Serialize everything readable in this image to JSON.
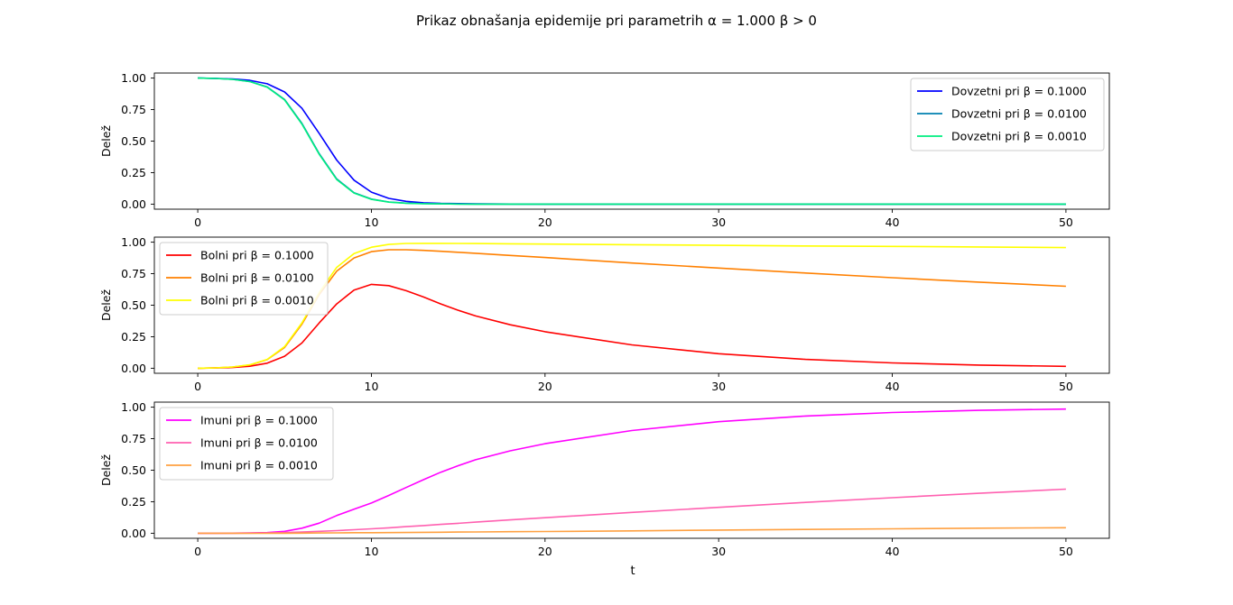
{
  "figure": {
    "title": "Prikaz obnašanja epidemije pri parametrih α = 1.000 β > 0",
    "xlabel": "t"
  },
  "chart_data": [
    {
      "type": "line",
      "ylabel": "Delež",
      "xlim": [
        -2.5,
        52.5
      ],
      "ylim": [
        -0.04,
        1.04
      ],
      "xticks": [
        0,
        10,
        20,
        30,
        40,
        50
      ],
      "yticks": [
        0.0,
        0.25,
        0.5,
        0.75,
        1.0
      ],
      "yticklabels": [
        "0.00",
        "0.25",
        "0.50",
        "0.75",
        "1.00"
      ],
      "grid": false,
      "legend": "top-right",
      "x": [
        0,
        1,
        2,
        3,
        4,
        5,
        6,
        7,
        8,
        9,
        10,
        11,
        12,
        13,
        14,
        15,
        16,
        18,
        20,
        25,
        30,
        35,
        40,
        45,
        50
      ],
      "series": [
        {
          "name": "Dovzetni pri β = 0.1000",
          "color": "#0000ff",
          "values": [
            1.0,
            0.998,
            0.993,
            0.982,
            0.955,
            0.89,
            0.76,
            0.56,
            0.35,
            0.19,
            0.095,
            0.046,
            0.022,
            0.011,
            0.006,
            0.004,
            0.002,
            0.001,
            0.0,
            0.0,
            0.0,
            0.0,
            0.0,
            0.0,
            0.0
          ]
        },
        {
          "name": "Dovzetni pri β = 0.0100",
          "color": "#0080b0",
          "values": [
            1.0,
            0.997,
            0.99,
            0.973,
            0.93,
            0.83,
            0.64,
            0.4,
            0.2,
            0.09,
            0.04,
            0.017,
            0.008,
            0.004,
            0.002,
            0.001,
            0.0,
            0.0,
            0.0,
            0.0,
            0.0,
            0.0,
            0.0,
            0.0,
            0.0
          ]
        },
        {
          "name": "Dovzetni pri β = 0.0010",
          "color": "#00ee80",
          "values": [
            1.0,
            0.997,
            0.99,
            0.972,
            0.928,
            0.826,
            0.635,
            0.395,
            0.195,
            0.088,
            0.038,
            0.016,
            0.007,
            0.003,
            0.002,
            0.001,
            0.0,
            0.0,
            0.0,
            0.0,
            0.0,
            0.0,
            0.0,
            0.0,
            0.0
          ]
        }
      ]
    },
    {
      "type": "line",
      "ylabel": "Delež",
      "xlim": [
        -2.5,
        52.5
      ],
      "ylim": [
        -0.04,
        1.04
      ],
      "xticks": [
        0,
        10,
        20,
        30,
        40,
        50
      ],
      "yticks": [
        0.0,
        0.25,
        0.5,
        0.75,
        1.0
      ],
      "yticklabels": [
        "0.00",
        "0.25",
        "0.50",
        "0.75",
        "1.00"
      ],
      "grid": false,
      "legend": "top-left",
      "x": [
        0,
        1,
        2,
        3,
        4,
        5,
        6,
        7,
        8,
        9,
        10,
        11,
        12,
        13,
        14,
        15,
        16,
        18,
        20,
        25,
        30,
        35,
        40,
        45,
        50
      ],
      "series": [
        {
          "name": "Bolni pri β = 0.1000",
          "color": "#ff0000",
          "values": [
            0.0,
            0.002,
            0.006,
            0.016,
            0.04,
            0.095,
            0.2,
            0.36,
            0.51,
            0.62,
            0.665,
            0.655,
            0.615,
            0.565,
            0.51,
            0.46,
            0.415,
            0.345,
            0.29,
            0.185,
            0.115,
            0.07,
            0.042,
            0.025,
            0.015
          ]
        },
        {
          "name": "Bolni pri β = 0.0100",
          "color": "#ff8000",
          "values": [
            0.0,
            0.003,
            0.01,
            0.026,
            0.068,
            0.165,
            0.35,
            0.585,
            0.77,
            0.875,
            0.925,
            0.94,
            0.94,
            0.935,
            0.928,
            0.92,
            0.912,
            0.895,
            0.878,
            0.835,
            0.795,
            0.755,
            0.718,
            0.683,
            0.65
          ]
        },
        {
          "name": "Bolni pri β = 0.0010",
          "color": "#ffff00",
          "values": [
            0.0,
            0.003,
            0.01,
            0.027,
            0.07,
            0.172,
            0.36,
            0.6,
            0.8,
            0.91,
            0.96,
            0.982,
            0.99,
            0.991,
            0.991,
            0.99,
            0.989,
            0.987,
            0.985,
            0.98,
            0.975,
            0.97,
            0.966,
            0.962,
            0.957
          ]
        }
      ]
    },
    {
      "type": "line",
      "ylabel": "Delež",
      "xlabel": "t",
      "xlim": [
        -2.5,
        52.5
      ],
      "ylim": [
        -0.04,
        1.04
      ],
      "xticks": [
        0,
        10,
        20,
        30,
        40,
        50
      ],
      "yticks": [
        0.0,
        0.25,
        0.5,
        0.75,
        1.0
      ],
      "yticklabels": [
        "0.00",
        "0.25",
        "0.50",
        "0.75",
        "1.00"
      ],
      "grid": false,
      "legend": "top-left",
      "x": [
        0,
        1,
        2,
        3,
        4,
        5,
        6,
        7,
        8,
        9,
        10,
        11,
        12,
        13,
        14,
        15,
        16,
        18,
        20,
        25,
        30,
        35,
        40,
        45,
        50
      ],
      "series": [
        {
          "name": "Imuni pri β = 0.1000",
          "color": "#ff00ff",
          "values": [
            0.0,
            0.0,
            0.001,
            0.002,
            0.005,
            0.015,
            0.04,
            0.08,
            0.14,
            0.19,
            0.24,
            0.3,
            0.363,
            0.425,
            0.484,
            0.536,
            0.583,
            0.654,
            0.71,
            0.815,
            0.885,
            0.93,
            0.958,
            0.975,
            0.985
          ]
        },
        {
          "name": "Imuni pri β = 0.0100",
          "color": "#ff60b0",
          "values": [
            0.0,
            0.0,
            0.0,
            0.001,
            0.002,
            0.005,
            0.01,
            0.015,
            0.021,
            0.028,
            0.035,
            0.043,
            0.052,
            0.061,
            0.07,
            0.079,
            0.088,
            0.106,
            0.123,
            0.165,
            0.205,
            0.245,
            0.282,
            0.317,
            0.35
          ]
        },
        {
          "name": "Imuni pri β = 0.0010",
          "color": "#ffa040",
          "values": [
            0.0,
            0.0,
            0.0,
            0.0,
            0.0,
            0.0,
            0.001,
            0.002,
            0.003,
            0.004,
            0.004,
            0.005,
            0.006,
            0.007,
            0.008,
            0.009,
            0.01,
            0.012,
            0.014,
            0.019,
            0.025,
            0.03,
            0.035,
            0.04,
            0.044
          ]
        }
      ]
    }
  ]
}
